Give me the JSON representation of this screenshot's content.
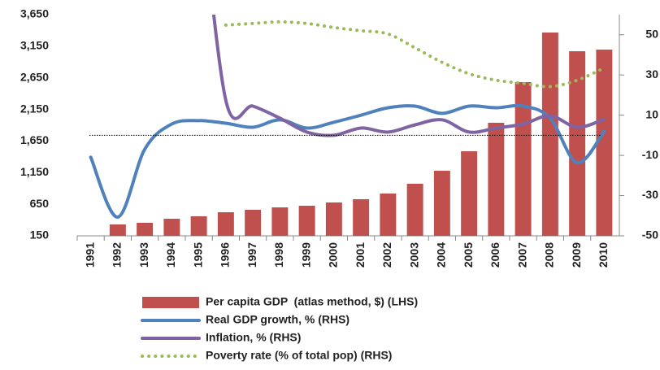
{
  "chart_data": {
    "type": "combo",
    "categories": [
      "1991",
      "1992",
      "1993",
      "1994",
      "1995",
      "1996",
      "1997",
      "1998",
      "1999",
      "2000",
      "2001",
      "2002",
      "2003",
      "2004",
      "2005",
      "2006",
      "2007",
      "2008",
      "2009",
      "2010"
    ],
    "series": [
      {
        "name": "Per capita GDP  (atlas method, $) (LHS)",
        "type": "bar",
        "axis": "y",
        "color": "#c0504d",
        "values": [
          null,
          330,
          356,
          420,
          459,
          523,
          562,
          600,
          626,
          678,
          729,
          819,
          974,
          1180,
          1488,
          1939,
          2582,
          3367,
          3071,
          3097
        ]
      },
      {
        "name": "Real GDP growth, % (RHS)",
        "type": "line",
        "axis": "y2",
        "color": "#4f81bd",
        "style": "solid",
        "values": [
          -10.9,
          -40.7,
          -6.9,
          5.6,
          7.3,
          6,
          4,
          7.7,
          3.6,
          6.5,
          10,
          13.7,
          14.5,
          10.9,
          14.5,
          13.7,
          14.5,
          8.5,
          -13.7,
          2
        ]
      },
      {
        "name": "Inflation, % (RHS)",
        "type": "line",
        "axis": "y2",
        "color": "#8064a2",
        "style": "solid",
        "values": [
          null,
          null,
          null,
          null,
          130,
          17.3,
          14.5,
          8.5,
          1.6,
          0,
          3.6,
          1.6,
          5.2,
          7.7,
          1.6,
          3.6,
          5.6,
          9.7,
          4,
          8
        ]
      },
      {
        "name": "Poverty rate (% of total pop) (RHS)",
        "type": "line",
        "axis": "y2",
        "color": "#9bbb59",
        "style": "dotted",
        "values": [
          null,
          null,
          null,
          null,
          null,
          54.8,
          55.6,
          56.4,
          55.6,
          53.6,
          52,
          50.4,
          43.5,
          36.3,
          30.6,
          27.4,
          25.8,
          24.2,
          27.4,
          33.5
        ]
      }
    ],
    "ylim": [
      150,
      3650
    ],
    "yticks": [
      150,
      650,
      {
        "value": 1150,
        "label": "1,150"
      },
      {
        "value": 1650,
        "label": "1,650"
      },
      {
        "value": 2150,
        "label": "2,150"
      },
      {
        "value": 2650,
        "label": "2,650"
      },
      {
        "value": 3150,
        "label": "3,150"
      },
      {
        "value": 3650,
        "label": "3,650"
      }
    ],
    "y2lim": [
      -50,
      60
    ],
    "y2ticks": [
      -50,
      -30,
      -10,
      10,
      30,
      50
    ],
    "zero_line": true,
    "grid": false,
    "legend": "bottom"
  }
}
